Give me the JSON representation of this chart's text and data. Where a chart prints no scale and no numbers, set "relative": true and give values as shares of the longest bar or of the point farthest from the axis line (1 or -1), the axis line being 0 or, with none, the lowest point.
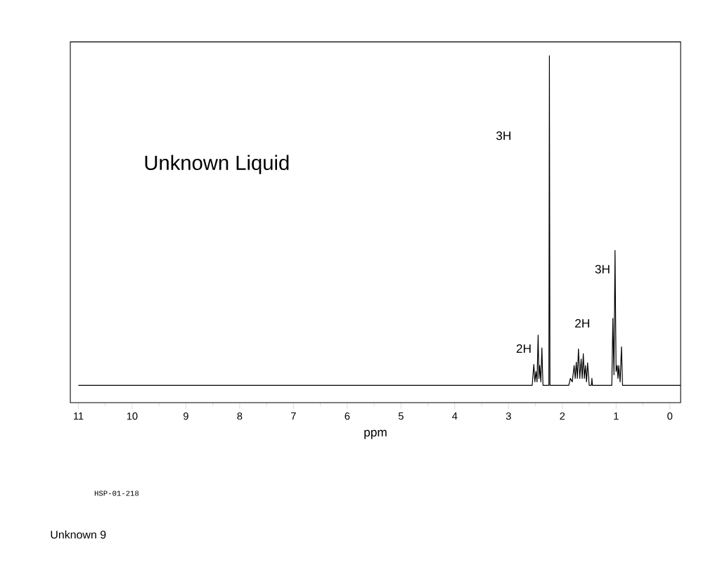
{
  "chart_data": {
    "type": "line",
    "title": "Unknown Liquid",
    "xlabel": "ppm",
    "relative": true,
    "xlim": [
      11.15,
      -0.2
    ],
    "xticks": [
      0,
      1,
      2,
      3,
      4,
      5,
      6,
      7,
      8,
      9,
      10,
      11
    ],
    "line_style": "solid",
    "marker": "none",
    "grid": false,
    "annotations": [
      "HSP-01-218",
      "Unknown 9",
      "3H",
      "2H",
      "2H",
      "3H"
    ],
    "series": [
      {
        "color": "#000000",
        "x": [
          11,
          2.56,
          2.53,
          2.51,
          2.49,
          2.47,
          2.45,
          2.435,
          2.42,
          2.4,
          2.38,
          2.36,
          2.25,
          2.24,
          2.23,
          1.88,
          1.85,
          1.815,
          1.78,
          1.76,
          1.74,
          1.72,
          1.7,
          1.675,
          1.65,
          1.63,
          1.61,
          1.59,
          1.57,
          1.55,
          1.53,
          1.5,
          1.46,
          1.45,
          1.44,
          1.08,
          1.06,
          1.04,
          1.02,
          1.0,
          0.98,
          0.965,
          0.95,
          0.925,
          0.9,
          0.88,
          -0.2
        ],
        "values": [
          0.05,
          0.05,
          0.11,
          0.06,
          0.09,
          0.06,
          0.195,
          0.07,
          0.107,
          0.06,
          0.158,
          0.05,
          0.05,
          1,
          0.05,
          0.05,
          0.07,
          0.06,
          0.107,
          0.07,
          0.117,
          0.07,
          0.155,
          0.07,
          0.126,
          0.07,
          0.141,
          0.07,
          0.107,
          0.06,
          0.115,
          0.05,
          0.05,
          0.07,
          0.05,
          0.05,
          0.243,
          0.08,
          0.439,
          0.09,
          0.107,
          0.07,
          0.107,
          0.06,
          0.161,
          0.05,
          0.05
        ]
      }
    ]
  }
}
